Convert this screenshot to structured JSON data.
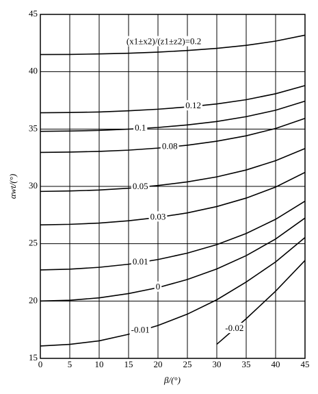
{
  "chart_data": {
    "type": "line",
    "x_label": "β/(°)",
    "y_label": "αwt/(°)",
    "x": [
      0,
      5,
      10,
      15,
      20,
      25,
      30,
      35,
      40,
      45
    ],
    "xlim": [
      0,
      45
    ],
    "xticks": [
      0,
      5,
      10,
      15,
      20,
      25,
      30,
      35,
      40,
      45
    ],
    "ylim": [
      15,
      45
    ],
    "yticks": [
      15,
      20,
      25,
      30,
      35,
      40,
      45
    ],
    "grid": true,
    "series": [
      {
        "name": "(x1±x2)/(z1±z2)=0.2",
        "color": "#000000",
        "values": [
          41.5,
          41.51,
          41.55,
          41.61,
          41.71,
          41.85,
          42.04,
          42.3,
          42.67,
          43.19
        ]
      },
      {
        "name": "0.12",
        "color": "#000000",
        "values": [
          36.42,
          36.44,
          36.49,
          36.59,
          36.73,
          36.93,
          37.19,
          37.56,
          38.08,
          38.79
        ]
      },
      {
        "name": "0.1",
        "color": "#000000",
        "values": [
          34.8,
          34.83,
          34.88,
          34.99,
          35.14,
          35.36,
          35.66,
          36.08,
          36.64,
          37.43
        ]
      },
      {
        "name": "0.08",
        "color": "#000000",
        "values": [
          32.96,
          32.99,
          33.05,
          33.16,
          33.34,
          33.59,
          33.94,
          34.41,
          35.05,
          35.93
        ]
      },
      {
        "name": "0.05",
        "color": "#000000",
        "values": [
          29.56,
          29.6,
          29.68,
          29.84,
          30.08,
          30.39,
          30.83,
          31.43,
          32.24,
          33.3
        ]
      },
      {
        "name": "0.03",
        "color": "#000000",
        "values": [
          26.64,
          26.69,
          26.8,
          27.0,
          27.29,
          27.69,
          28.24,
          28.98,
          29.94,
          31.22
        ]
      },
      {
        "name": "0.01",
        "color": "#000000",
        "values": [
          22.71,
          22.78,
          22.94,
          23.21,
          23.62,
          24.18,
          24.92,
          25.89,
          27.13,
          28.71
        ]
      },
      {
        "name": "0",
        "color": "#000000",
        "values": [
          20.0,
          20.07,
          20.28,
          20.65,
          21.17,
          21.88,
          22.8,
          23.96,
          25.41,
          27.24
        ]
      },
      {
        "name": "-0.01",
        "color": "#000000",
        "values": [
          16.08,
          16.22,
          16.53,
          17.1,
          17.87,
          18.86,
          20.11,
          21.66,
          23.41,
          25.54
        ]
      },
      {
        "name": "-0.02",
        "color": "#000000",
        "values": [
          null,
          null,
          null,
          null,
          null,
          null,
          16.23,
          18.46,
          20.86,
          23.54
        ]
      }
    ]
  }
}
